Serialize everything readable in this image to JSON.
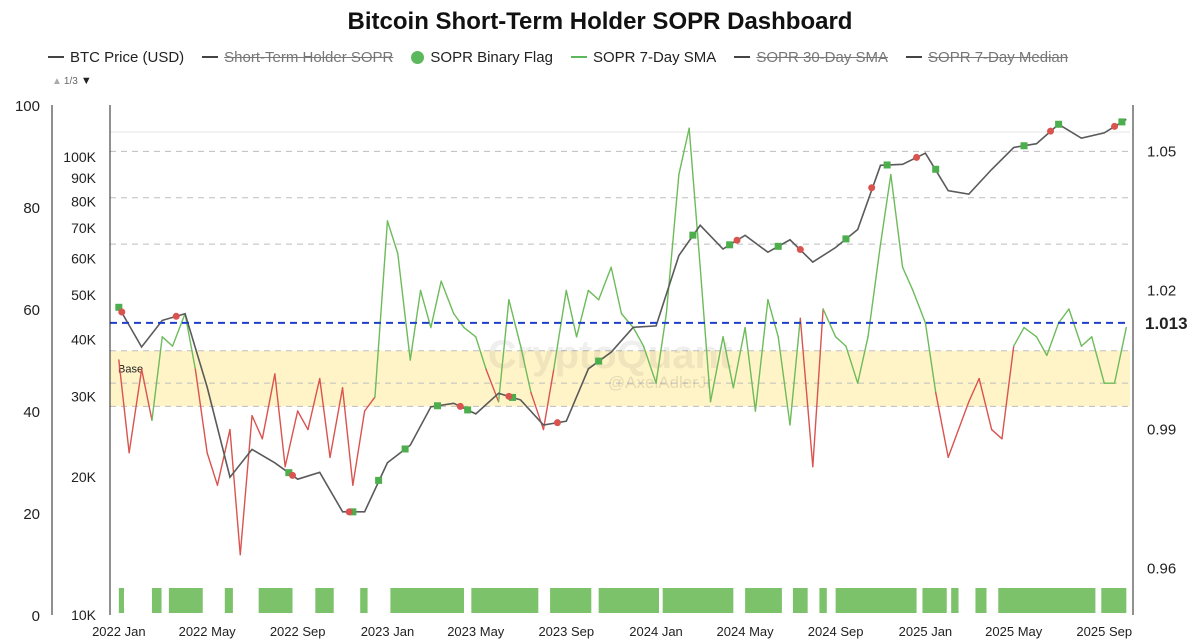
{
  "title": "Bitcoin Short-Term Holder SOPR Dashboard",
  "legend": [
    {
      "label": "BTC Price (USD)",
      "kind": "line",
      "color": "#444444",
      "hidden": false
    },
    {
      "label": "Short-Term Holder SOPR",
      "kind": "line",
      "color": "#444444",
      "hidden": true
    },
    {
      "label": "SOPR Binary Flag",
      "kind": "dot",
      "color": "#5cb85c",
      "hidden": false
    },
    {
      "label": "SOPR 7-Day SMA",
      "kind": "line",
      "color": "#5cb85c",
      "hidden": false
    },
    {
      "label": "SOPR 30-Day SMA",
      "kind": "line",
      "color": "#444444",
      "hidden": true
    },
    {
      "label": "SOPR 7-Day Median",
      "kind": "line",
      "color": "#444444",
      "hidden": true
    }
  ],
  "pager": {
    "text": "1/3"
  },
  "watermark": {
    "main": "CryptoQuant",
    "sub": "@AxelAdlerJr"
  },
  "colors": {
    "price": "#5a5a5a",
    "sopr_above": "#6dbb5a",
    "sopr_below": "#d9534f",
    "threshold": "#1f3fc9",
    "band": "#fff4c8",
    "flag": "#6dbb5a",
    "grid": "#bdbdbd"
  },
  "chart_data": {
    "type": "line",
    "title": "Bitcoin Short-Term Holder SOPR Dashboard",
    "x_ticks": [
      "2022 Jan",
      "2022 May",
      "2022 Sep",
      "2023 Jan",
      "2023 May",
      "2023 Sep",
      "2024 Jan",
      "2024 May",
      "2024 Sep",
      "2025 Jan",
      "2025 May",
      "2025 Sep"
    ],
    "left_axis_ticks": [
      "100",
      "80",
      "60",
      "40",
      "20",
      "0"
    ],
    "price_axis": {
      "scale": "log",
      "ticks": [
        "100K",
        "90K",
        "80K",
        "70K",
        "60K",
        "50K",
        "40K",
        "30K",
        "20K",
        "10K"
      ],
      "range": [
        10000,
        130000
      ]
    },
    "right_axis": {
      "ticks": [
        "1.05",
        "1.02",
        "0.99",
        "0.96"
      ],
      "range": [
        0.95,
        1.06
      ]
    },
    "threshold": {
      "value": 1.013,
      "label": "1.013"
    },
    "band_label": "Base",
    "band": [
      0.995,
      1.007
    ],
    "series": [
      {
        "name": "BTC Price (USD)",
        "axis": "price",
        "x": [
          "2022-01-01",
          "2022-02-01",
          "2022-03-01",
          "2022-04-01",
          "2022-05-01",
          "2022-06-01",
          "2022-07-01",
          "2022-08-01",
          "2022-09-01",
          "2022-10-01",
          "2022-11-01",
          "2022-12-01",
          "2023-01-01",
          "2023-02-01",
          "2023-03-01",
          "2023-04-01",
          "2023-05-01",
          "2023-06-01",
          "2023-07-01",
          "2023-08-01",
          "2023-09-01",
          "2023-10-01",
          "2023-11-01",
          "2023-12-01",
          "2024-01-01",
          "2024-02-01",
          "2024-03-01",
          "2024-04-01",
          "2024-05-01",
          "2024-06-01",
          "2024-07-01",
          "2024-08-01",
          "2024-09-01",
          "2024-10-01",
          "2024-11-01",
          "2024-12-01",
          "2025-01-01",
          "2025-02-01",
          "2025-03-01",
          "2025-04-01",
          "2025-05-01",
          "2025-06-01",
          "2025-07-01",
          "2025-08-01",
          "2025-09-01",
          "2025-10-01"
        ],
        "values": [
          47000,
          38500,
          44000,
          45500,
          31500,
          20000,
          23000,
          21500,
          19800,
          20500,
          16800,
          16800,
          21500,
          23500,
          28500,
          29000,
          27500,
          30500,
          29500,
          26000,
          26500,
          34500,
          37500,
          42500,
          42800,
          61000,
          71000,
          63000,
          67500,
          62000,
          66000,
          59000,
          63500,
          69500,
          96000,
          96500,
          102000,
          84500,
          83000,
          94000,
          105000,
          107000,
          118000,
          110000,
          113000,
          121000
        ]
      },
      {
        "name": "SOPR 7-Day SMA",
        "axis": "sopr",
        "x": [
          "2022-01-01",
          "2022-01-15",
          "2022-02-01",
          "2022-02-15",
          "2022-03-01",
          "2022-03-15",
          "2022-04-01",
          "2022-04-15",
          "2022-05-01",
          "2022-05-15",
          "2022-06-01",
          "2022-06-15",
          "2022-07-01",
          "2022-07-15",
          "2022-08-01",
          "2022-08-15",
          "2022-09-01",
          "2022-09-15",
          "2022-10-01",
          "2022-10-15",
          "2022-11-01",
          "2022-11-15",
          "2022-12-01",
          "2022-12-15",
          "2023-01-01",
          "2023-01-15",
          "2023-02-01",
          "2023-02-15",
          "2023-03-01",
          "2023-03-15",
          "2023-04-01",
          "2023-04-15",
          "2023-05-01",
          "2023-05-15",
          "2023-06-01",
          "2023-06-15",
          "2023-07-01",
          "2023-07-15",
          "2023-08-01",
          "2023-08-15",
          "2023-09-01",
          "2023-09-15",
          "2023-10-01",
          "2023-10-15",
          "2023-11-01",
          "2023-11-15",
          "2023-12-01",
          "2023-12-15",
          "2024-01-01",
          "2024-01-15",
          "2024-02-01",
          "2024-02-15",
          "2024-03-01",
          "2024-03-15",
          "2024-04-01",
          "2024-04-15",
          "2024-05-01",
          "2024-05-15",
          "2024-06-01",
          "2024-06-15",
          "2024-07-01",
          "2024-07-15",
          "2024-08-01",
          "2024-08-15",
          "2024-09-01",
          "2024-09-15",
          "2024-10-01",
          "2024-10-15",
          "2024-11-01",
          "2024-11-15",
          "2024-12-01",
          "2024-12-15",
          "2025-01-01",
          "2025-01-15",
          "2025-02-01",
          "2025-02-15",
          "2025-03-01",
          "2025-03-15",
          "2025-04-01",
          "2025-04-15",
          "2025-05-01",
          "2025-05-15",
          "2025-06-01",
          "2025-06-15",
          "2025-07-01",
          "2025-07-15",
          "2025-08-01",
          "2025-08-15",
          "2025-09-01",
          "2025-09-15",
          "2025-10-01"
        ],
        "values": [
          1.005,
          0.985,
          1.003,
          0.992,
          1.01,
          1.008,
          1.015,
          1.003,
          0.985,
          0.978,
          0.99,
          0.963,
          0.993,
          0.988,
          1.002,
          0.982,
          0.994,
          0.99,
          1.001,
          0.984,
          0.999,
          0.978,
          0.994,
          0.997,
          1.035,
          1.028,
          1.005,
          1.02,
          1.012,
          1.022,
          1.015,
          1.012,
          1.01,
          1.003,
          0.996,
          1.018,
          1.008,
          0.998,
          0.99,
          1.003,
          1.02,
          1.01,
          1.02,
          1.018,
          1.025,
          1.015,
          1.012,
          1.008,
          1.0,
          1.015,
          1.045,
          1.055,
          1.025,
          0.996,
          1.01,
          0.999,
          1.012,
          0.994,
          1.018,
          1.01,
          0.991,
          1.014,
          0.982,
          1.016,
          1.01,
          1.008,
          1.0,
          1.01,
          1.03,
          1.045,
          1.025,
          1.02,
          1.013,
          0.998,
          0.984,
          0.99,
          0.996,
          1.001,
          0.99,
          0.988,
          1.008,
          1.012,
          1.01,
          1.006,
          1.013,
          1.016,
          1.008,
          1.01,
          1.0,
          1.0,
          1.012
        ]
      }
    ],
    "flag_markers_green": [
      "2022-01-01",
      "2022-08-20",
      "2022-11-15",
      "2022-12-20",
      "2023-01-25",
      "2023-03-10",
      "2023-04-20",
      "2023-06-20",
      "2023-10-15",
      "2024-02-20",
      "2024-04-10",
      "2024-06-15",
      "2024-09-15",
      "2024-11-10",
      "2025-01-15",
      "2025-05-15",
      "2025-07-01",
      "2025-09-25"
    ],
    "flag_markers_red": [
      "2022-01-05",
      "2022-03-20",
      "2022-08-25",
      "2022-11-10",
      "2023-04-10",
      "2023-06-15",
      "2023-08-20",
      "2024-04-20",
      "2024-07-15",
      "2024-10-20",
      "2024-12-20",
      "2025-06-20",
      "2025-09-15"
    ],
    "binary_flag_on": [
      [
        "2022-01-01",
        "2022-01-08"
      ],
      [
        "2022-02-15",
        "2022-02-28"
      ],
      [
        "2022-03-10",
        "2022-04-25"
      ],
      [
        "2022-05-25",
        "2022-06-05"
      ],
      [
        "2022-07-10",
        "2022-08-25"
      ],
      [
        "2022-09-25",
        "2022-10-20"
      ],
      [
        "2022-11-25",
        "2022-12-05"
      ],
      [
        "2023-01-05",
        "2023-04-15"
      ],
      [
        "2023-04-25",
        "2023-07-25"
      ],
      [
        "2023-08-10",
        "2023-10-05"
      ],
      [
        "2023-10-15",
        "2024-01-05"
      ],
      [
        "2024-01-10",
        "2024-04-15"
      ],
      [
        "2024-05-01",
        "2024-06-20"
      ],
      [
        "2024-07-05",
        "2024-07-25"
      ],
      [
        "2024-08-10",
        "2024-08-20"
      ],
      [
        "2024-09-01",
        "2024-12-20"
      ],
      [
        "2024-12-28",
        "2025-01-30"
      ],
      [
        "2025-02-05",
        "2025-02-15"
      ],
      [
        "2025-03-10",
        "2025-03-25"
      ],
      [
        "2025-04-10",
        "2025-08-20"
      ],
      [
        "2025-08-28",
        "2025-10-01"
      ]
    ]
  }
}
